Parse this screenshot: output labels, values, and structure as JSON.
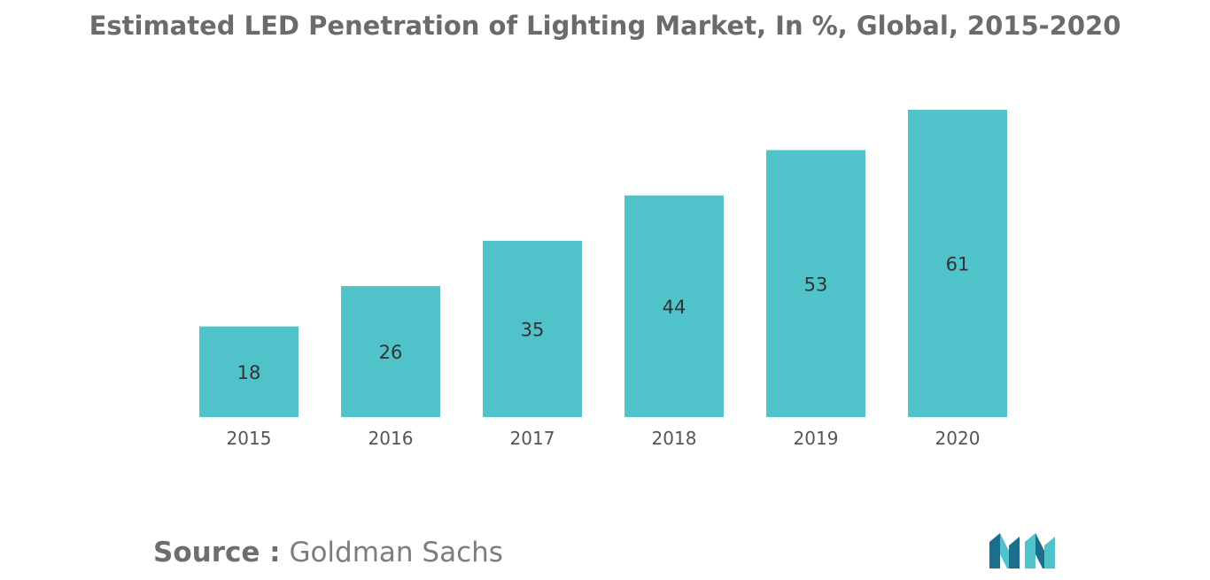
{
  "chart_data": {
    "type": "bar",
    "title": "Estimated LED Penetration of Lighting Market, In %, Global, 2015-2020",
    "categories": [
      "2015",
      "2016",
      "2017",
      "2018",
      "2019",
      "2020"
    ],
    "values": [
      18,
      26,
      35,
      44,
      53,
      61
    ],
    "xlabel": "",
    "ylabel": "",
    "ylim": [
      0,
      61
    ],
    "grid": false,
    "legend": "none",
    "bar_color": "#4fc3c9"
  },
  "source": {
    "label": "Source :",
    "value": "Goldman Sachs"
  },
  "logo": {
    "icon": "mordor-intelligence-logo-icon",
    "color_dark": "#1d6d8c",
    "color_light": "#4fc3c9"
  }
}
